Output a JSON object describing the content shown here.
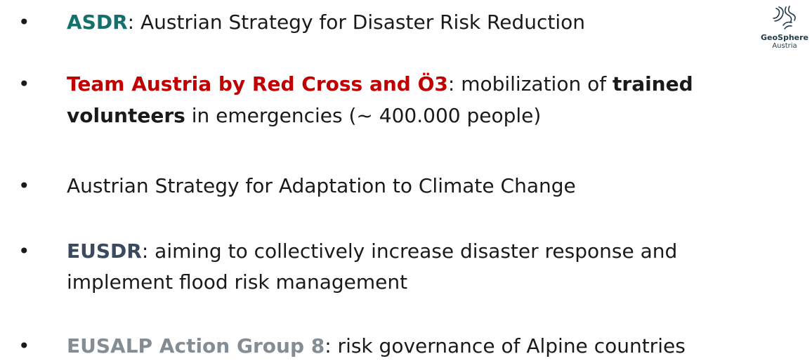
{
  "logo": {
    "name": "GeoSphere",
    "subtitle": "Austria"
  },
  "bullets": [
    {
      "lines": [
        [
          "ASDR",
          ": Austrian Strategy for Disaster Risk Reduction"
        ]
      ]
    },
    {
      "lines": [
        [
          "Team Austria by Red Cross and Ö3",
          ": mobilization of ",
          "trained"
        ],
        [
          "volunteers",
          " in emergencies (~ 400.000 people)"
        ]
      ]
    },
    {
      "lines": [
        [
          "Austrian Strategy for Adaptation to Climate Change"
        ]
      ]
    },
    {
      "lines": [
        [
          "EUSDR",
          ": aiming to collectively increase disaster response and"
        ],
        [
          "implement flood risk management"
        ]
      ]
    },
    {
      "lines": [
        [
          "EUSALP Action Group 8",
          ": risk governance of Alpine countries"
        ]
      ]
    }
  ]
}
